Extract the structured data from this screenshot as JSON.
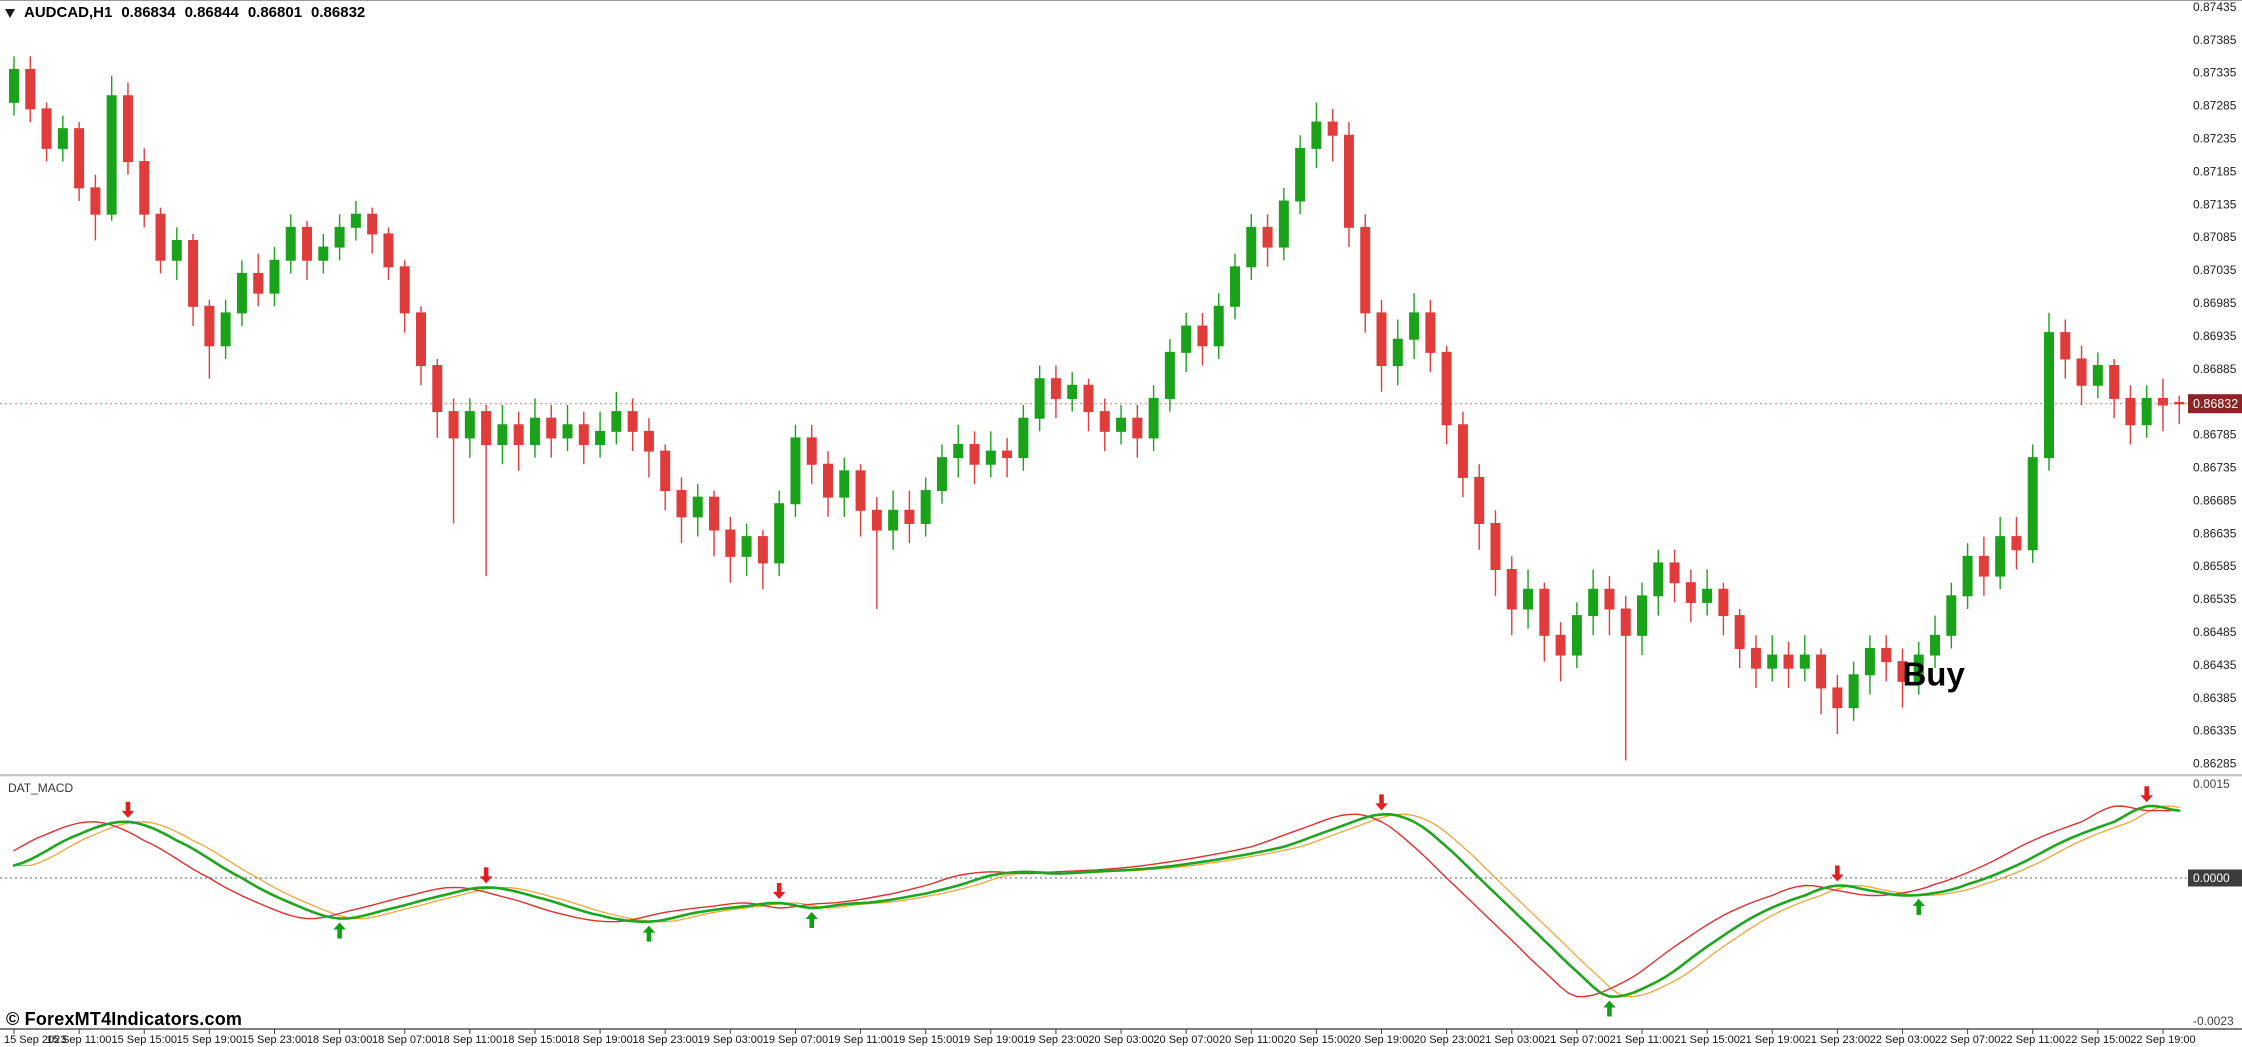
{
  "header": {
    "symbol_period": "AUDCAD,H1",
    "open": "0.86834",
    "high": "0.86844",
    "low": "0.86801",
    "close": "0.86832"
  },
  "footer": {
    "copyright": "© ForexMT4Indicators.com"
  },
  "colors": {
    "bull": "#1aa31a",
    "bear": "#e03c3c",
    "price_line": "#cf9090",
    "price_badge_bg": "#8b2525",
    "zero_badge_bg": "#3d3d3d",
    "macd_green": "#1fa51f",
    "macd_red": "#e03030",
    "macd_orange": "#efa73c",
    "arrow_down": "#e01f1f",
    "arrow_up": "#11a011",
    "axis_text": "#1c1c1c"
  },
  "chart_data": {
    "type": "candlestick",
    "title": "AUDCAD,H1",
    "symbol": "AUDCAD",
    "timeframe": "H1",
    "ohlc_display": {
      "open": 0.86834,
      "high": 0.86844,
      "low": 0.86801,
      "close": 0.86832
    },
    "current_price": {
      "bid": 0.86832,
      "label": "0.86832"
    },
    "ylim": [
      0.86269,
      0.87444
    ],
    "grid": false,
    "price_ticks": [
      "0.87435",
      "0.87385",
      "0.87335",
      "0.87285",
      "0.87235",
      "0.87185",
      "0.87135",
      "0.87085",
      "0.87035",
      "0.86985",
      "0.86935",
      "0.86885",
      "0.86835",
      "0.86785",
      "0.86735",
      "0.86685",
      "0.86635",
      "0.86585",
      "0.86535",
      "0.86485",
      "0.86435",
      "0.86385",
      "0.86335",
      "0.86285"
    ],
    "tick_every": 4,
    "time_labels": [
      "15 Sep 2023",
      "15 Sep 11:00",
      "15 Sep 15:00",
      "15 Sep 19:00",
      "15 Sep 23:00",
      "18 Sep 03:00",
      "18 Sep 07:00",
      "18 Sep 11:00",
      "18 Sep 15:00",
      "18 Sep 19:00",
      "18 Sep 23:00",
      "19 Sep 03:00",
      "19 Sep 07:00",
      "19 Sep 11:00",
      "19 Sep 15:00",
      "19 Sep 19:00",
      "19 Sep 23:00",
      "20 Sep 03:00",
      "20 Sep 07:00",
      "20 Sep 11:00",
      "20 Sep 15:00",
      "20 Sep 19:00",
      "20 Sep 23:00",
      "21 Sep 03:00",
      "21 Sep 07:00",
      "21 Sep 11:00",
      "21 Sep 15:00",
      "21 Sep 19:00",
      "21 Sep 23:00",
      "22 Sep 03:00",
      "22 Sep 07:00",
      "22 Sep 11:00",
      "22 Sep 15:00",
      "22 Sep 19:00"
    ],
    "candles": [
      [
        0.8729,
        0.8736,
        0.8727,
        0.8734
      ],
      [
        0.8734,
        0.8736,
        0.8726,
        0.8728
      ],
      [
        0.8728,
        0.8729,
        0.872,
        0.8722
      ],
      [
        0.8722,
        0.8727,
        0.872,
        0.8725
      ],
      [
        0.8725,
        0.8726,
        0.8714,
        0.8716
      ],
      [
        0.8716,
        0.8718,
        0.8708,
        0.8712
      ],
      [
        0.8712,
        0.8733,
        0.8711,
        0.873
      ],
      [
        0.873,
        0.8732,
        0.8718,
        0.872
      ],
      [
        0.872,
        0.8722,
        0.871,
        0.8712
      ],
      [
        0.8712,
        0.8713,
        0.8703,
        0.8705
      ],
      [
        0.8705,
        0.871,
        0.8702,
        0.8708
      ],
      [
        0.8708,
        0.8709,
        0.8695,
        0.8698
      ],
      [
        0.8698,
        0.8699,
        0.8687,
        0.8692
      ],
      [
        0.8692,
        0.8699,
        0.869,
        0.8697
      ],
      [
        0.8697,
        0.8705,
        0.8695,
        0.8703
      ],
      [
        0.8703,
        0.8706,
        0.8698,
        0.87
      ],
      [
        0.87,
        0.8707,
        0.8698,
        0.8705
      ],
      [
        0.8705,
        0.8712,
        0.8703,
        0.871
      ],
      [
        0.871,
        0.8711,
        0.8702,
        0.8705
      ],
      [
        0.8705,
        0.8709,
        0.8703,
        0.8707
      ],
      [
        0.8707,
        0.8712,
        0.8705,
        0.871
      ],
      [
        0.871,
        0.8714,
        0.8708,
        0.8712
      ],
      [
        0.8712,
        0.8713,
        0.8706,
        0.8709
      ],
      [
        0.8709,
        0.871,
        0.8702,
        0.8704
      ],
      [
        0.8704,
        0.8705,
        0.8694,
        0.8697
      ],
      [
        0.8697,
        0.8698,
        0.8686,
        0.8689
      ],
      [
        0.8689,
        0.869,
        0.8678,
        0.8682
      ],
      [
        0.8682,
        0.8684,
        0.8665,
        0.8678
      ],
      [
        0.8678,
        0.8684,
        0.8675,
        0.8682
      ],
      [
        0.8682,
        0.8683,
        0.8657,
        0.8677
      ],
      [
        0.8677,
        0.8683,
        0.8674,
        0.868
      ],
      [
        0.868,
        0.8682,
        0.8673,
        0.8677
      ],
      [
        0.8677,
        0.8684,
        0.8675,
        0.8681
      ],
      [
        0.8681,
        0.8683,
        0.8675,
        0.8678
      ],
      [
        0.8678,
        0.8683,
        0.8676,
        0.868
      ],
      [
        0.868,
        0.8682,
        0.8674,
        0.8677
      ],
      [
        0.8677,
        0.8682,
        0.8675,
        0.8679
      ],
      [
        0.8679,
        0.8685,
        0.8677,
        0.8682
      ],
      [
        0.8682,
        0.8684,
        0.8676,
        0.8679
      ],
      [
        0.8679,
        0.8681,
        0.8672,
        0.8676
      ],
      [
        0.8676,
        0.8677,
        0.8667,
        0.867
      ],
      [
        0.867,
        0.8672,
        0.8662,
        0.8666
      ],
      [
        0.8666,
        0.8671,
        0.8663,
        0.8669
      ],
      [
        0.8669,
        0.867,
        0.866,
        0.8664
      ],
      [
        0.8664,
        0.8666,
        0.8656,
        0.866
      ],
      [
        0.866,
        0.8665,
        0.8657,
        0.8663
      ],
      [
        0.8663,
        0.8664,
        0.8655,
        0.8659
      ],
      [
        0.8659,
        0.867,
        0.8657,
        0.8668
      ],
      [
        0.8668,
        0.868,
        0.8666,
        0.8678
      ],
      [
        0.8678,
        0.868,
        0.8671,
        0.8674
      ],
      [
        0.8674,
        0.8676,
        0.8666,
        0.8669
      ],
      [
        0.8669,
        0.8675,
        0.8666,
        0.8673
      ],
      [
        0.8673,
        0.8674,
        0.8663,
        0.8667
      ],
      [
        0.8667,
        0.8669,
        0.8652,
        0.8664
      ],
      [
        0.8664,
        0.867,
        0.8661,
        0.8667
      ],
      [
        0.8667,
        0.867,
        0.8662,
        0.8665
      ],
      [
        0.8665,
        0.8672,
        0.8663,
        0.867
      ],
      [
        0.867,
        0.8677,
        0.8668,
        0.8675
      ],
      [
        0.8675,
        0.868,
        0.8672,
        0.8677
      ],
      [
        0.8677,
        0.8679,
        0.8671,
        0.8674
      ],
      [
        0.8674,
        0.8679,
        0.8672,
        0.8676
      ],
      [
        0.8676,
        0.8678,
        0.8672,
        0.8675
      ],
      [
        0.8675,
        0.8683,
        0.8673,
        0.8681
      ],
      [
        0.8681,
        0.8689,
        0.8679,
        0.8687
      ],
      [
        0.8687,
        0.8689,
        0.8681,
        0.8684
      ],
      [
        0.8684,
        0.8688,
        0.8682,
        0.8686
      ],
      [
        0.8686,
        0.8687,
        0.8679,
        0.8682
      ],
      [
        0.8682,
        0.8684,
        0.8676,
        0.8679
      ],
      [
        0.8679,
        0.8683,
        0.8677,
        0.8681
      ],
      [
        0.8681,
        0.8683,
        0.8675,
        0.8678
      ],
      [
        0.8678,
        0.8686,
        0.8676,
        0.8684
      ],
      [
        0.8684,
        0.8693,
        0.8682,
        0.8691
      ],
      [
        0.8691,
        0.8697,
        0.8688,
        0.8695
      ],
      [
        0.8695,
        0.8697,
        0.8689,
        0.8692
      ],
      [
        0.8692,
        0.87,
        0.869,
        0.8698
      ],
      [
        0.8698,
        0.8706,
        0.8696,
        0.8704
      ],
      [
        0.8704,
        0.8712,
        0.8702,
        0.871
      ],
      [
        0.871,
        0.8712,
        0.8704,
        0.8707
      ],
      [
        0.8707,
        0.8716,
        0.8705,
        0.8714
      ],
      [
        0.8714,
        0.8724,
        0.8712,
        0.8722
      ],
      [
        0.8722,
        0.8729,
        0.8719,
        0.8726
      ],
      [
        0.8726,
        0.8728,
        0.872,
        0.8724
      ],
      [
        0.8724,
        0.8726,
        0.8707,
        0.871
      ],
      [
        0.871,
        0.8712,
        0.8694,
        0.8697
      ],
      [
        0.8697,
        0.8699,
        0.8685,
        0.8689
      ],
      [
        0.8689,
        0.8696,
        0.8686,
        0.8693
      ],
      [
        0.8693,
        0.87,
        0.869,
        0.8697
      ],
      [
        0.8697,
        0.8699,
        0.8688,
        0.8691
      ],
      [
        0.8691,
        0.8692,
        0.8677,
        0.868
      ],
      [
        0.868,
        0.8682,
        0.8669,
        0.8672
      ],
      [
        0.8672,
        0.8674,
        0.8661,
        0.8665
      ],
      [
        0.8665,
        0.8667,
        0.8654,
        0.8658
      ],
      [
        0.8658,
        0.866,
        0.8648,
        0.8652
      ],
      [
        0.8652,
        0.8658,
        0.8649,
        0.8655
      ],
      [
        0.8655,
        0.8656,
        0.8644,
        0.8648
      ],
      [
        0.8648,
        0.865,
        0.8641,
        0.8645
      ],
      [
        0.8645,
        0.8653,
        0.8643,
        0.8651
      ],
      [
        0.8651,
        0.8658,
        0.8648,
        0.8655
      ],
      [
        0.8655,
        0.8657,
        0.8648,
        0.8652
      ],
      [
        0.8652,
        0.8654,
        0.8629,
        0.8648
      ],
      [
        0.8648,
        0.8656,
        0.8645,
        0.8654
      ],
      [
        0.8654,
        0.8661,
        0.8651,
        0.8659
      ],
      [
        0.8659,
        0.8661,
        0.8653,
        0.8656
      ],
      [
        0.8656,
        0.8658,
        0.865,
        0.8653
      ],
      [
        0.8653,
        0.8658,
        0.8651,
        0.8655
      ],
      [
        0.8655,
        0.8656,
        0.8648,
        0.8651
      ],
      [
        0.8651,
        0.8652,
        0.8643,
        0.8646
      ],
      [
        0.8646,
        0.8648,
        0.864,
        0.8643
      ],
      [
        0.8643,
        0.8648,
        0.8641,
        0.8645
      ],
      [
        0.8645,
        0.8647,
        0.864,
        0.8643
      ],
      [
        0.8643,
        0.8648,
        0.8641,
        0.8645
      ],
      [
        0.8645,
        0.8646,
        0.8636,
        0.864
      ],
      [
        0.864,
        0.8642,
        0.8633,
        0.8637
      ],
      [
        0.8637,
        0.8644,
        0.8635,
        0.8642
      ],
      [
        0.8642,
        0.8648,
        0.8639,
        0.8646
      ],
      [
        0.8646,
        0.8648,
        0.8641,
        0.8644
      ],
      [
        0.8644,
        0.8646,
        0.8637,
        0.8641
      ],
      [
        0.8641,
        0.8647,
        0.8639,
        0.8645
      ],
      [
        0.8645,
        0.8651,
        0.8643,
        0.8648
      ],
      [
        0.8648,
        0.8656,
        0.8646,
        0.8654
      ],
      [
        0.8654,
        0.8662,
        0.8652,
        0.866
      ],
      [
        0.866,
        0.8663,
        0.8654,
        0.8657
      ],
      [
        0.8657,
        0.8666,
        0.8655,
        0.8663
      ],
      [
        0.8663,
        0.8666,
        0.8658,
        0.8661
      ],
      [
        0.8661,
        0.8677,
        0.8659,
        0.8675
      ],
      [
        0.8675,
        0.8697,
        0.8673,
        0.8694
      ],
      [
        0.8694,
        0.8696,
        0.8687,
        0.869
      ],
      [
        0.869,
        0.8692,
        0.8683,
        0.8686
      ],
      [
        0.8686,
        0.8691,
        0.8684,
        0.8689
      ],
      [
        0.8689,
        0.869,
        0.8681,
        0.8684
      ],
      [
        0.8684,
        0.8686,
        0.8677,
        0.868
      ],
      [
        0.868,
        0.8686,
        0.8678,
        0.8684
      ],
      [
        0.8684,
        0.8687,
        0.8679,
        0.8683
      ],
      [
        0.86834,
        0.86844,
        0.86801,
        0.86832
      ]
    ],
    "annotations": [
      {
        "text": "Buy",
        "candle_index": 116,
        "price": 0.86452
      }
    ],
    "macd": {
      "name": "DAT_MACD",
      "labels": {
        "max": "0.0015",
        "zero": "0.0000",
        "min": "-0.0023"
      },
      "points": [
        [
          0,
          0.0002
        ],
        [
          4,
          0.0007
        ],
        [
          7,
          0.0009
        ],
        [
          10,
          0.0006
        ],
        [
          14,
          0.0
        ],
        [
          17,
          -0.0004
        ],
        [
          20,
          -0.00065
        ],
        [
          23,
          -0.0005
        ],
        [
          26,
          -0.0003
        ],
        [
          29,
          -0.00015
        ],
        [
          32,
          -0.0003
        ],
        [
          36,
          -0.0006
        ],
        [
          39,
          -0.0007
        ],
        [
          42,
          -0.00055
        ],
        [
          45,
          -0.00045
        ],
        [
          47,
          -0.0004
        ],
        [
          49,
          -0.00048
        ],
        [
          51,
          -0.00042
        ],
        [
          53,
          -0.00038
        ],
        [
          56,
          -0.00025
        ],
        [
          58,
          -0.00012
        ],
        [
          60,
          4e-05
        ],
        [
          62,
          0.0001
        ],
        [
          64,
          7e-05
        ],
        [
          66,
          0.0001
        ],
        [
          70,
          0.00016
        ],
        [
          74,
          0.0003
        ],
        [
          78,
          0.0005
        ],
        [
          81,
          0.00078
        ],
        [
          84,
          0.00102
        ],
        [
          86,
          0.0009
        ],
        [
          88,
          0.0005
        ],
        [
          90,
          0.0
        ],
        [
          92,
          -0.0005
        ],
        [
          94,
          -0.001
        ],
        [
          96,
          -0.0015
        ],
        [
          98,
          -0.0019
        ],
        [
          101,
          -0.00165
        ],
        [
          104,
          -0.0011
        ],
        [
          107,
          -0.0006
        ],
        [
          110,
          -0.00028
        ],
        [
          112,
          -0.00012
        ],
        [
          114,
          -0.0002
        ],
        [
          116,
          -0.00028
        ],
        [
          118,
          -0.00024
        ],
        [
          120,
          -0.0001
        ],
        [
          123,
          0.0002
        ],
        [
          126,
          0.0006
        ],
        [
          129,
          0.0009
        ],
        [
          131,
          0.00115
        ],
        [
          133,
          0.00108
        ]
      ],
      "signals": [
        {
          "idx": 7,
          "value": 0.0009,
          "dir": "down"
        },
        {
          "idx": 20,
          "value": -0.00065,
          "dir": "up"
        },
        {
          "idx": 29,
          "value": -0.00015,
          "dir": "down"
        },
        {
          "idx": 39,
          "value": -0.0007,
          "dir": "up"
        },
        {
          "idx": 47,
          "value": -0.0004,
          "dir": "down"
        },
        {
          "idx": 49,
          "value": -0.00048,
          "dir": "up"
        },
        {
          "idx": 84,
          "value": 0.00102,
          "dir": "down"
        },
        {
          "idx": 98,
          "value": -0.0019,
          "dir": "up"
        },
        {
          "idx": 112,
          "value": -0.00012,
          "dir": "down"
        },
        {
          "idx": 117,
          "value": -0.00027,
          "dir": "up"
        },
        {
          "idx": 131,
          "value": 0.00115,
          "dir": "down"
        }
      ]
    }
  }
}
